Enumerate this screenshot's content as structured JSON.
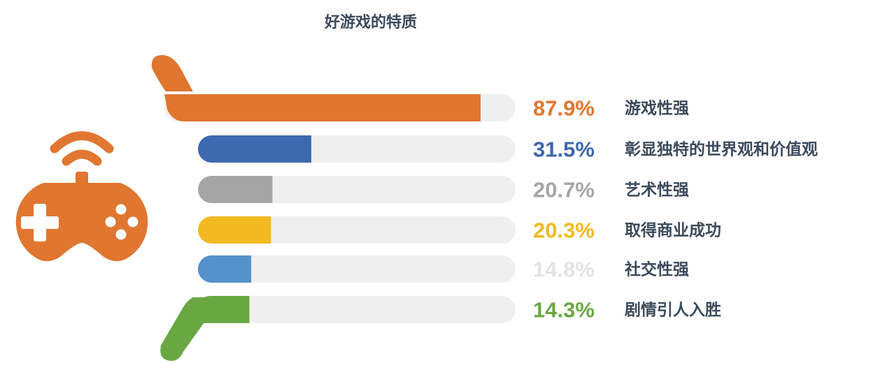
{
  "chart_data": {
    "type": "bar",
    "title": "好游戏的特质",
    "categories": [
      "游戏性强",
      "彰显独特的世界观和价值观",
      "艺术性强",
      "取得商业成功",
      "社交性强",
      "剧情引人入胜"
    ],
    "values": [
      87.9,
      31.5,
      20.7,
      20.3,
      14.8,
      14.3
    ],
    "value_labels": [
      "87.9%",
      "31.5%",
      "20.7%",
      "20.3%",
      "14.8%",
      "14.3%"
    ],
    "colors": [
      "#e07630",
      "#3e68b0",
      "#a5a5a5",
      "#f2b921",
      "#5592cc",
      "#6aa743"
    ],
    "label_colors": [
      "#e07630",
      "#3e68b0",
      "#a5a5a5",
      "#f2b921",
      "#e3e3e3",
      "#6aa743"
    ],
    "track_color": "#efefef",
    "ylim": [
      0,
      100
    ],
    "icon": "gamepad-icon",
    "icon_color": "#e07630"
  }
}
